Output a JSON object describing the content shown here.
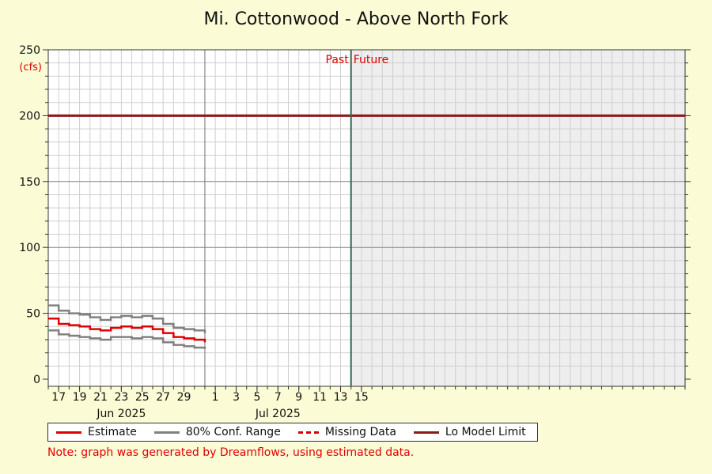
{
  "chart_data": {
    "type": "line",
    "title": "Mi. Cottonwood - Above North Fork",
    "ylabel": "(cfs)",
    "ylim": [
      0,
      250
    ],
    "y_ticks": [
      0,
      50,
      100,
      150,
      200,
      250
    ],
    "xlim": [
      "2025-05-16",
      "2025-07-16"
    ],
    "x_tick_labels": [
      {
        "date": "2025-05-17",
        "label": "17"
      },
      {
        "date": "2025-05-19",
        "label": "19"
      },
      {
        "date": "2025-05-21",
        "label": "21"
      },
      {
        "date": "2025-05-23",
        "label": "23"
      },
      {
        "date": "2025-05-25",
        "label": "25"
      },
      {
        "date": "2025-05-27",
        "label": "27"
      },
      {
        "date": "2025-05-29",
        "label": "29"
      },
      {
        "date": "2025-06-01",
        "label": "1"
      },
      {
        "date": "2025-06-03",
        "label": "3"
      },
      {
        "date": "2025-06-05",
        "label": "5"
      },
      {
        "date": "2025-06-07",
        "label": "7"
      },
      {
        "date": "2025-06-09",
        "label": "9"
      },
      {
        "date": "2025-06-11",
        "label": "11"
      },
      {
        "date": "2025-06-13",
        "label": "13"
      },
      {
        "date": "2025-06-15",
        "label": "15"
      }
    ],
    "month_labels": [
      {
        "date": "2025-05-23",
        "label": "Jun 2025"
      },
      {
        "date": "2025-06-07",
        "label": "Jul 2025"
      }
    ],
    "month_boundary": "2025-05-31",
    "now": "2025-06-14",
    "past_label": "Past",
    "future_label": "Future",
    "grid": true,
    "series": [
      {
        "name": "Estimate",
        "color": "#e00000",
        "x": [
          "2025-05-16",
          "2025-05-17",
          "2025-05-18",
          "2025-05-19",
          "2025-05-20",
          "2025-05-21",
          "2025-05-22",
          "2025-05-23",
          "2025-05-24",
          "2025-05-25",
          "2025-05-26",
          "2025-05-27",
          "2025-05-28",
          "2025-05-29",
          "2025-05-30",
          "2025-05-31"
        ],
        "values": [
          46,
          42,
          41,
          40,
          38,
          37,
          39,
          40,
          39,
          40,
          38,
          35,
          32,
          31,
          30,
          28
        ]
      },
      {
        "name": "80% Conf. Range",
        "color": "#808080",
        "x": [
          "2025-05-16",
          "2025-05-17",
          "2025-05-18",
          "2025-05-19",
          "2025-05-20",
          "2025-05-21",
          "2025-05-22",
          "2025-05-23",
          "2025-05-24",
          "2025-05-25",
          "2025-05-26",
          "2025-05-27",
          "2025-05-28",
          "2025-05-29",
          "2025-05-30",
          "2025-05-31"
        ],
        "upper": [
          56,
          52,
          50,
          49,
          47,
          45,
          47,
          48,
          47,
          48,
          46,
          42,
          39,
          38,
          37,
          35
        ],
        "lower": [
          37,
          34,
          33,
          32,
          31,
          30,
          32,
          32,
          31,
          32,
          31,
          28,
          26,
          25,
          24,
          23
        ]
      },
      {
        "name": "Missing Data",
        "color": "#e00000",
        "values": []
      },
      {
        "name": "Lo Model Limit",
        "color": "#8b1a1a",
        "values": [
          200
        ]
      }
    ],
    "legend_position": "bottom"
  },
  "legend": [
    {
      "label": "Estimate",
      "color": "#e00000",
      "style": "solid"
    },
    {
      "label": "80% Conf. Range",
      "color": "#808080",
      "style": "solid"
    },
    {
      "label": "Missing Data",
      "color": "#e00000",
      "style": "dashed"
    },
    {
      "label": "Lo Model Limit",
      "color": "#8b1a1a",
      "style": "solid"
    }
  ],
  "note": "Note: graph was generated by Dreamflows, using estimated data."
}
